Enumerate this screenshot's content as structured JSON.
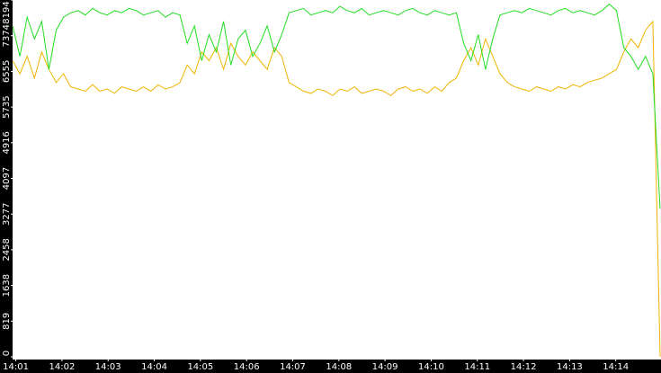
{
  "chart_data": {
    "type": "line",
    "xlim": [
      0.93,
      14.98
    ],
    "xticks": [
      {
        "value": 1,
        "label": "14:01"
      },
      {
        "value": 2,
        "label": "14:02"
      },
      {
        "value": 3,
        "label": "14:03"
      },
      {
        "value": 4,
        "label": "14:04"
      },
      {
        "value": 5,
        "label": "14:05"
      },
      {
        "value": 6,
        "label": "14:06"
      },
      {
        "value": 7,
        "label": "14:07"
      },
      {
        "value": 8,
        "label": "14:08"
      },
      {
        "value": 9,
        "label": "14:09"
      },
      {
        "value": 10,
        "label": "14:10"
      },
      {
        "value": 11,
        "label": "14:11"
      },
      {
        "value": 12,
        "label": "14:12"
      },
      {
        "value": 13,
        "label": "14:13"
      },
      {
        "value": 14,
        "label": "14:14"
      }
    ],
    "ylim": [
      0,
      8194
    ],
    "yticks": [
      0,
      819,
      1638,
      2458,
      3277,
      4097,
      4916,
      5735,
      6555,
      7374,
      8194
    ],
    "series": [
      {
        "color": "#22dd22",
        "values": [
          7600,
          6900,
          7800,
          7300,
          7700,
          6600,
          7500,
          7800,
          7900,
          7950,
          7850,
          8000,
          7900,
          7850,
          7950,
          7900,
          8000,
          7950,
          7850,
          7900,
          7950,
          7800,
          7900,
          7850,
          7200,
          7600,
          6800,
          7400,
          7000,
          7700,
          6700,
          7300,
          7500,
          6900,
          7200,
          7600,
          7000,
          7400,
          7900,
          7950,
          8000,
          7850,
          7900,
          7950,
          7900,
          8050,
          7950,
          7900,
          8000,
          7850,
          7900,
          7950,
          7900,
          7850,
          7950,
          8000,
          7900,
          7850,
          7950,
          7900,
          7850,
          7900,
          7200,
          6800,
          7400,
          6600,
          7300,
          7850,
          7900,
          7950,
          7900,
          8000,
          7950,
          7900,
          7850,
          7950,
          8000,
          7900,
          7950,
          7900,
          7850,
          7950,
          8100,
          7950,
          7100,
          6900,
          6600,
          6900,
          6500,
          3400
        ]
      },
      {
        "color": "#f0b400",
        "values": [
          6800,
          6500,
          6900,
          6400,
          7000,
          6600,
          6300,
          6500,
          6200,
          6150,
          6100,
          6250,
          6100,
          6150,
          6050,
          6200,
          6150,
          6100,
          6200,
          6100,
          6250,
          6150,
          6200,
          6300,
          6700,
          6500,
          7000,
          6800,
          7100,
          6600,
          7200,
          6900,
          6700,
          7000,
          6800,
          6600,
          7100,
          6900,
          6300,
          6200,
          6100,
          6050,
          6150,
          6100,
          6000,
          6150,
          6100,
          6200,
          6050,
          6100,
          6150,
          6100,
          6000,
          6150,
          6200,
          6100,
          6150,
          6050,
          6200,
          6100,
          6300,
          6400,
          6800,
          7100,
          6700,
          7300,
          6900,
          6500,
          6300,
          6200,
          6150,
          6100,
          6200,
          6150,
          6100,
          6200,
          6150,
          6250,
          6200,
          6300,
          6350,
          6400,
          6500,
          6600,
          7000,
          7300,
          7100,
          7500,
          7700,
          0
        ]
      }
    ]
  }
}
